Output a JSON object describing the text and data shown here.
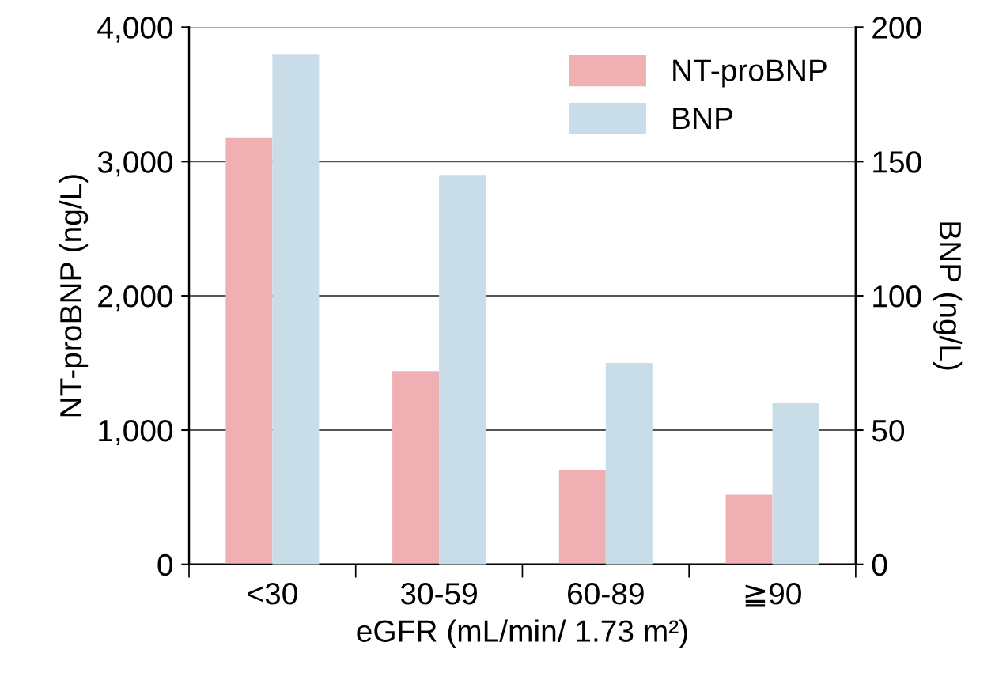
{
  "chart_data": {
    "type": "bar",
    "xlabel": "eGFR (mL/min/ 1.73 m²)",
    "ylabel": "NT-proBNP (ng/L)",
    "y2label": "BNP (ng/L)",
    "categories": [
      "<30",
      "30-59",
      "60-89",
      "≧90"
    ],
    "series": [
      {
        "name": "NT-proBNP",
        "color": "#f0b0b3",
        "values": [
          3180,
          1440,
          700,
          520
        ]
      },
      {
        "name": "BNP",
        "color": "#c9dde9",
        "values": [
          190,
          145,
          75,
          60
        ],
        "axis": "y2"
      }
    ],
    "ylim": [
      0,
      4000
    ],
    "yticks": [
      {
        "value": 0,
        "label": "0"
      },
      {
        "value": 1000,
        "label": "1,000"
      },
      {
        "value": 2000,
        "label": "2,000"
      },
      {
        "value": 3000,
        "label": "3,000"
      },
      {
        "value": 4000,
        "label": "4,000"
      }
    ],
    "y2lim": [
      0,
      200
    ],
    "y2ticks": [
      0,
      50,
      100,
      150,
      200
    ],
    "grid": "y",
    "legend": "top right"
  }
}
